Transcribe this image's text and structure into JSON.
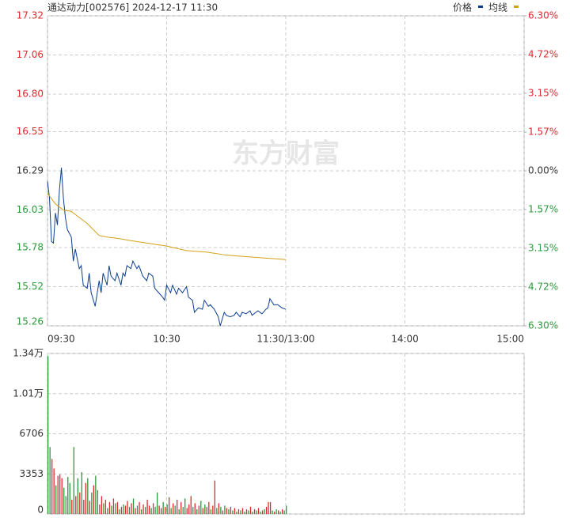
{
  "chart_data": [
    {
      "type": "line",
      "title": "通达动力[002576] 2024-12-17 11:30",
      "watermark": "东方财富",
      "grid": true,
      "xlim": [
        0,
        240
      ],
      "xticks": [
        {
          "value": 0,
          "label": "09:30"
        },
        {
          "value": 60,
          "label": "10:30"
        },
        {
          "value": 120,
          "label": "11:30/13:00"
        },
        {
          "value": 180,
          "label": "14:00"
        },
        {
          "value": 240,
          "label": "15:00"
        }
      ],
      "ylim": [
        15.26,
        17.32
      ],
      "yticks": [
        15.26,
        15.52,
        15.78,
        16.03,
        16.29,
        16.55,
        {
          "value": 16.8,
          "label": "16.80"
        },
        17.06,
        17.32
      ],
      "y2lim": [
        -6.3,
        6.3
      ],
      "y2ticks": [
        {
          "value": -6.3,
          "label": "6.30%"
        },
        {
          "value": -4.72,
          "label": "4.72%"
        },
        {
          "value": -3.15,
          "label": "3.15%"
        },
        {
          "value": -1.57,
          "label": "1.57%"
        },
        {
          "value": 0,
          "label": "0.00%"
        },
        {
          "value": 1.57,
          "label": "1.57%"
        },
        {
          "value": 3.15,
          "label": "3.15%"
        },
        {
          "value": 4.72,
          "label": "4.72%"
        },
        {
          "value": 6.3,
          "label": "6.30%"
        }
      ],
      "series": [
        {
          "name": "价格",
          "color": "#0b3d91",
          "x": [
            0,
            1,
            2,
            3,
            4,
            5,
            6,
            7,
            8,
            9,
            10,
            12,
            13,
            14,
            16,
            17,
            18,
            20,
            21,
            22,
            24,
            26,
            27,
            28,
            30,
            31,
            32,
            34,
            35,
            37,
            38,
            39,
            40,
            42,
            43,
            45,
            46,
            48,
            50,
            51,
            53,
            54,
            56,
            58,
            59,
            60,
            62,
            63,
            65,
            66,
            68,
            70,
            71,
            73,
            74,
            76,
            78,
            79,
            81,
            82,
            84,
            86,
            87,
            89,
            90,
            92,
            94,
            95,
            97,
            98,
            100,
            102,
            103,
            105,
            106,
            108,
            110,
            111,
            112,
            114,
            116,
            118,
            120
          ],
          "values": [
            16.22,
            16.11,
            15.82,
            15.81,
            16.01,
            15.93,
            16.16,
            16.31,
            16.11,
            15.98,
            15.9,
            15.85,
            15.69,
            15.77,
            15.64,
            15.66,
            15.53,
            15.51,
            15.61,
            15.48,
            15.39,
            15.56,
            15.48,
            15.61,
            15.53,
            15.66,
            15.59,
            15.56,
            15.61,
            15.53,
            15.61,
            15.59,
            15.66,
            15.64,
            15.69,
            15.64,
            15.66,
            15.59,
            15.56,
            15.61,
            15.59,
            15.51,
            15.48,
            15.45,
            15.43,
            15.53,
            15.48,
            15.53,
            15.47,
            15.51,
            15.48,
            15.52,
            15.45,
            15.43,
            15.35,
            15.38,
            15.37,
            15.43,
            15.39,
            15.4,
            15.37,
            15.32,
            15.26,
            15.35,
            15.33,
            15.32,
            15.33,
            15.35,
            15.32,
            15.35,
            15.34,
            15.36,
            15.33,
            15.35,
            15.36,
            15.34,
            15.37,
            15.38,
            15.44,
            15.4,
            15.4,
            15.38,
            15.37
          ]
        },
        {
          "name": "均线",
          "color": "#d4a017",
          "x": [
            0,
            4,
            8,
            12,
            16,
            20,
            26,
            30,
            36,
            40,
            50,
            60,
            70,
            80,
            90,
            100,
            110,
            120
          ],
          "values": [
            16.14,
            16.07,
            16.03,
            16.02,
            15.98,
            15.94,
            15.86,
            15.85,
            15.84,
            15.83,
            15.81,
            15.79,
            15.76,
            15.75,
            15.73,
            15.72,
            15.71,
            15.7
          ]
        }
      ]
    },
    {
      "type": "bar",
      "grid": true,
      "xlim": [
        0,
        240
      ],
      "xticks": [
        0,
        60,
        120,
        180,
        240
      ],
      "ylim": [
        0,
        13412
      ],
      "yticks": [
        0,
        3353,
        6706,
        {
          "value": 10059,
          "label": "1.01万"
        },
        {
          "value": 13412,
          "label": "1.34万"
        }
      ],
      "x": [
        0,
        1,
        2,
        3,
        4,
        5,
        6,
        7,
        8,
        9,
        10,
        11,
        12,
        13,
        14,
        15,
        16,
        17,
        18,
        19,
        20,
        21,
        22,
        23,
        24,
        25,
        26,
        27,
        28,
        29,
        30,
        31,
        32,
        33,
        34,
        35,
        36,
        37,
        38,
        39,
        40,
        41,
        42,
        43,
        44,
        45,
        46,
        47,
        48,
        49,
        50,
        51,
        52,
        53,
        54,
        55,
        56,
        57,
        58,
        59,
        60,
        61,
        62,
        63,
        64,
        65,
        66,
        67,
        68,
        69,
        70,
        71,
        72,
        73,
        74,
        75,
        76,
        77,
        78,
        79,
        80,
        81,
        82,
        83,
        84,
        85,
        86,
        87,
        88,
        89,
        90,
        91,
        92,
        93,
        94,
        95,
        96,
        97,
        98,
        99,
        100,
        101,
        102,
        103,
        104,
        105,
        106,
        107,
        108,
        109,
        110,
        111,
        112,
        113,
        114,
        115,
        116,
        117,
        118,
        119,
        120
      ],
      "values": [
        13200,
        5600,
        4600,
        3800,
        2400,
        3200,
        3300,
        3000,
        2200,
        1500,
        3100,
        2600,
        1200,
        5600,
        1500,
        3000,
        1800,
        3500,
        1200,
        2600,
        3000,
        1100,
        1800,
        2400,
        3200,
        2000,
        800,
        1500,
        900,
        1200,
        500,
        1000,
        700,
        1300,
        900,
        1000,
        400,
        600,
        800,
        700,
        1100,
        600,
        900,
        1300,
        500,
        700,
        1000,
        400,
        800,
        600,
        1200,
        700,
        500,
        900,
        600,
        1800,
        700,
        500,
        1000,
        600,
        800,
        1400,
        500,
        900,
        700,
        1200,
        400,
        1000,
        600,
        1300,
        500,
        800,
        1500,
        600,
        900,
        400,
        700,
        1100,
        500,
        800,
        600,
        1000,
        400,
        700,
        2800,
        500,
        900,
        600,
        300,
        700,
        500,
        400,
        600,
        300,
        500,
        200,
        400,
        300,
        500,
        200,
        400,
        300,
        600,
        200,
        400,
        300,
        500,
        200,
        300,
        400,
        600,
        1000,
        1000,
        300,
        200,
        400,
        300,
        200,
        400,
        300,
        700
      ],
      "colors": [
        "#2a9a3a",
        "#2a9a3a",
        "#e0282e",
        "#e0282e",
        "#2a9a3a",
        "#e0282e",
        "#e0282e",
        "#e0282e",
        "#2a9a3a",
        "#2a9a3a",
        "#2a9a3a",
        "#2a9a3a",
        "#e0282e",
        "#2a9a3a",
        "#e0282e",
        "#2a9a3a",
        "#e0282e",
        "#2a9a3a",
        "#e0282e",
        "#e0282e",
        "#2a9a3a",
        "#e0282e",
        "#2a9a3a",
        "#e0282e",
        "#2a9a3a",
        "#2a9a3a",
        "#e0282e",
        "#e0282e",
        "#2a9a3a",
        "#e0282e",
        "#2a9a3a",
        "#e0282e",
        "#2a9a3a",
        "#e0282e",
        "#2a9a3a",
        "#e0282e",
        "#2a9a3a",
        "#e0282e",
        "#2a9a3a",
        "#e0282e",
        "#e0282e",
        "#2a9a3a",
        "#e0282e",
        "#2a9a3a",
        "#e0282e",
        "#2a9a3a",
        "#e0282e",
        "#2a9a3a",
        "#e0282e",
        "#2a9a3a",
        "#e0282e",
        "#e0282e",
        "#2a9a3a",
        "#e0282e",
        "#2a9a3a",
        "#2a9a3a",
        "#e0282e",
        "#e0282e",
        "#2a9a3a",
        "#e0282e",
        "#2a9a3a",
        "#e0282e",
        "#2a9a3a",
        "#e0282e",
        "#2a9a3a",
        "#e0282e",
        "#2a9a3a",
        "#e0282e",
        "#2a9a3a",
        "#2a9a3a",
        "#e0282e",
        "#e0282e",
        "#e0282e",
        "#2a9a3a",
        "#e0282e",
        "#2a9a3a",
        "#e0282e",
        "#2a9a3a",
        "#e0282e",
        "#2a9a3a",
        "#e0282e",
        "#e0282e",
        "#2a9a3a",
        "#e0282e",
        "#e0282e",
        "#2a9a3a",
        "#e0282e",
        "#2a9a3a",
        "#e0282e",
        "#2a9a3a",
        "#e0282e",
        "#2a9a3a",
        "#e0282e",
        "#2a9a3a",
        "#e0282e",
        "#2a9a3a",
        "#e0282e",
        "#2a9a3a",
        "#e0282e",
        "#2a9a3a",
        "#e0282e",
        "#2a9a3a",
        "#e0282e",
        "#2a9a3a",
        "#e0282e",
        "#2a9a3a",
        "#e0282e",
        "#2a9a3a",
        "#e0282e",
        "#2a9a3a",
        "#e0282e",
        "#e0282e",
        "#e0282e",
        "#2a9a3a",
        "#e0282e",
        "#2a9a3a",
        "#e0282e",
        "#2a9a3a",
        "#e0282e",
        "#2a9a3a",
        "#2a9a3a"
      ]
    }
  ]
}
